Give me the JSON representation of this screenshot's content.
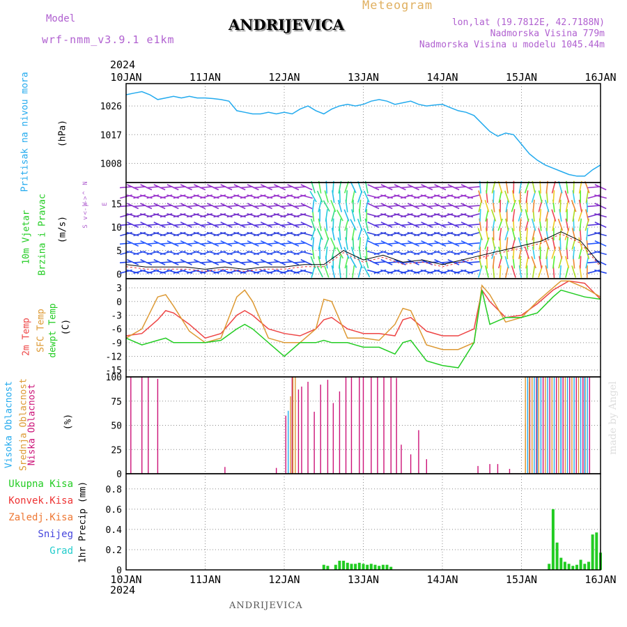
{
  "header": {
    "model_label": "Model",
    "model_name": "wrf-nmm_v3.9.1 e1km",
    "station": "ANDRIJEVICA",
    "meteogram_label": "Meteogram",
    "lonlat": "lon,lat (19.7812E, 42.7188N)",
    "elevation": "Nadmorska Visina 779m",
    "model_elevation": "Nadmorska Visina u modelu 1045.44m",
    "year_top": "2024",
    "year_bottom": "2024",
    "footer_station": "ANDRIJEVICA",
    "signature": "made by Angel"
  },
  "colors": {
    "purple_text": "#b060d0",
    "orange_text": "#e0b060",
    "pressure": "#22aaee",
    "temp2m": "#ee4444",
    "sfc": "#dd9933",
    "dewpt": "#22cc22",
    "high_cloud": "#22aaee",
    "mid_cloud": "#dd9933",
    "low_cloud": "#cc1177",
    "total_precip": "#22cc22",
    "conv_precip": "#ee3333",
    "frz_precip": "#ee7733",
    "snow": "#4444dd",
    "hail": "#22cccc",
    "wind_label": "#22cc22",
    "grid": "#888888"
  },
  "chart_data": [
    {
      "type": "line",
      "name": "pressure",
      "ylabel_main": "Pritisak na nivou mora",
      "ylabel_unit": "(hPa)",
      "x_ticks": [
        "10JAN",
        "11JAN",
        "12JAN",
        "13JAN",
        "14JAN",
        "15JAN",
        "16JAN"
      ],
      "y_ticks": [
        1008,
        1017,
        1026
      ],
      "ylim": [
        1002,
        1033
      ],
      "x_range_days": [
        0,
        6
      ],
      "series": [
        {
          "x": [
            0,
            0.1,
            0.2,
            0.3,
            0.4,
            0.5,
            0.6,
            0.7,
            0.8,
            0.9,
            1.0,
            1.1,
            1.2,
            1.3,
            1.4,
            1.5,
            1.6,
            1.7,
            1.8,
            1.9,
            2.0,
            2.1,
            2.2,
            2.3,
            2.4,
            2.5,
            2.6,
            2.7,
            2.8,
            2.9,
            3.0,
            3.1,
            3.2,
            3.3,
            3.4,
            3.5,
            3.6,
            3.7,
            3.8,
            3.9,
            4.0,
            4.1,
            4.2,
            4.3,
            4.4,
            4.5,
            4.6,
            4.7,
            4.8,
            4.9,
            5.0,
            5.1,
            5.2,
            5.3,
            5.4,
            5.5,
            5.6,
            5.7,
            5.8,
            5.9,
            6.0
          ],
          "values": [
            1029.5,
            1030,
            1030.5,
            1029.5,
            1028,
            1028.5,
            1029,
            1028.5,
            1029,
            1028.5,
            1028.5,
            1028.3,
            1028,
            1027.5,
            1024.5,
            1024,
            1023.5,
            1023.5,
            1024,
            1023.5,
            1024,
            1023.5,
            1025,
            1026,
            1024.5,
            1023.5,
            1025,
            1026,
            1026.5,
            1026,
            1026.5,
            1027.5,
            1028,
            1027.5,
            1026.5,
            1027,
            1027.5,
            1026.5,
            1026,
            1026.3,
            1026.5,
            1025.5,
            1024.5,
            1024,
            1023,
            1020.5,
            1018,
            1016.5,
            1017.5,
            1017,
            1014,
            1011,
            1009,
            1007.5,
            1006.5,
            1005.5,
            1004.5,
            1004,
            1004,
            1006,
            1007.5
          ]
        }
      ]
    },
    {
      "type": "barbs",
      "name": "wind",
      "ylabel_main": "10m Vjetar",
      "ylabel_sub": "Brzina i Pravac",
      "ylabel_unit": "(m/s)",
      "compass": [
        "N",
        "W",
        "E",
        "S"
      ],
      "compass_rows": [
        "^",
        "<-|->",
        "v"
      ],
      "y_ticks": [
        0,
        5,
        10,
        15
      ],
      "ylim": [
        -1,
        19.5
      ],
      "speed_x": [
        0,
        0.25,
        0.5,
        0.75,
        1.0,
        1.25,
        1.5,
        1.75,
        2.0,
        2.25,
        2.5,
        2.75,
        3.0,
        3.25,
        3.5,
        3.75,
        4.0,
        4.25,
        4.5,
        4.75,
        5.0,
        5.25,
        5.5,
        5.75,
        6.0
      ],
      "speed_values": [
        2,
        1.5,
        1.5,
        1.5,
        1,
        1.5,
        1,
        1.5,
        1.5,
        2,
        2,
        5,
        3,
        4,
        2.5,
        3,
        2,
        3,
        4,
        5,
        6,
        7,
        9,
        7,
        2
      ]
    },
    {
      "type": "line",
      "name": "temperature",
      "ylabel_a": "2m Temp",
      "ylabel_b": "SFC Temp",
      "ylabel_c": "dewpt Temp",
      "ylabel_unit": "(C)",
      "y_ticks": [
        -15,
        -12,
        -9,
        -6,
        -3,
        0,
        3
      ],
      "ylim": [
        -16.5,
        5
      ],
      "series": [
        {
          "name": "2m Temp",
          "x": [
            0,
            0.2,
            0.4,
            0.5,
            0.6,
            0.8,
            1.0,
            1.2,
            1.4,
            1.5,
            1.6,
            1.8,
            2.0,
            2.2,
            2.4,
            2.5,
            2.6,
            2.8,
            3.0,
            3.2,
            3.4,
            3.5,
            3.6,
            3.8,
            4.0,
            4.2,
            4.4,
            4.5,
            4.6,
            4.8,
            5.0,
            5.2,
            5.4,
            5.5,
            5.6,
            5.8,
            6.0
          ],
          "values": [
            -7.5,
            -7,
            -4,
            -2,
            -2.5,
            -5,
            -8,
            -7,
            -3,
            -2,
            -3,
            -6,
            -7,
            -7.5,
            -6,
            -4,
            -3.5,
            -6,
            -7,
            -7,
            -7.5,
            -4,
            -3.5,
            -6.5,
            -7.5,
            -7.5,
            -6,
            2.5,
            0,
            -3.5,
            -3,
            -0.5,
            2.5,
            3.5,
            4.5,
            4,
            0.5
          ]
        },
        {
          "name": "SFC Temp",
          "x": [
            0,
            0.2,
            0.4,
            0.5,
            0.6,
            0.8,
            1.0,
            1.2,
            1.4,
            1.5,
            1.6,
            1.8,
            2.0,
            2.2,
            2.4,
            2.5,
            2.6,
            2.8,
            3.0,
            3.2,
            3.4,
            3.5,
            3.6,
            3.8,
            4.0,
            4.2,
            4.4,
            4.5,
            4.6,
            4.8,
            5.0,
            5.2,
            5.4,
            5.5,
            5.6,
            5.8,
            6.0
          ],
          "values": [
            -8,
            -6,
            1,
            1.5,
            -1,
            -6.5,
            -9,
            -8,
            1,
            2.5,
            0,
            -8,
            -9,
            -9,
            -6,
            0.5,
            0,
            -8,
            -8,
            -8.5,
            -5,
            -1.5,
            -2,
            -9.5,
            -10.5,
            -10.5,
            -9,
            3.5,
            1.5,
            -4.5,
            -3.5,
            0,
            3,
            4.5,
            4.5,
            3,
            1
          ]
        },
        {
          "name": "dewpt Temp",
          "x": [
            0,
            0.2,
            0.4,
            0.5,
            0.6,
            0.8,
            1.0,
            1.2,
            1.4,
            1.5,
            1.6,
            1.8,
            2.0,
            2.2,
            2.4,
            2.5,
            2.6,
            2.8,
            3.0,
            3.2,
            3.4,
            3.5,
            3.6,
            3.8,
            4.0,
            4.2,
            4.4,
            4.5,
            4.6,
            4.8,
            5.0,
            5.2,
            5.4,
            5.5,
            5.6,
            5.8,
            6.0
          ],
          "values": [
            -8,
            -9.5,
            -8.5,
            -8,
            -9,
            -9,
            -9,
            -8.5,
            -6,
            -5,
            -6,
            -9,
            -12,
            -9,
            -9,
            -8.5,
            -9,
            -9,
            -10,
            -10,
            -11.5,
            -9,
            -8.5,
            -13,
            -14,
            -14.5,
            -9,
            2.5,
            -5,
            -3.5,
            -3.5,
            -2.5,
            1,
            2.5,
            2,
            1,
            0.5
          ]
        }
      ]
    },
    {
      "type": "bar",
      "name": "clouds",
      "ylabel_a": "Visoka Oblacnost",
      "ylabel_b": "Srednja Oblacnost",
      "ylabel_c": "Niska Oblacnost",
      "ylabel_unit": "(%)",
      "y_ticks": [
        0,
        25,
        50,
        75,
        100
      ],
      "ylim": [
        0,
        100
      ],
      "series": [
        {
          "name": "Niska Oblacnost",
          "x": [
            0.06,
            0.2,
            0.28,
            0.4,
            1.25,
            1.9,
            2.02,
            2.1,
            2.18,
            2.22,
            2.3,
            2.38,
            2.46,
            2.55,
            2.62,
            2.7,
            2.78,
            2.85,
            2.95,
            3.0,
            3.1,
            3.18,
            3.26,
            3.35,
            3.42,
            3.48,
            3.6,
            3.7,
            3.8,
            4.45,
            4.6,
            4.7,
            4.85,
            5.1
          ],
          "values": [
            100,
            100,
            100,
            98,
            7,
            6,
            60,
            100,
            87,
            90,
            95,
            64,
            92,
            97,
            73,
            85,
            100,
            100,
            100,
            100,
            100,
            100,
            100,
            100,
            99,
            30,
            20,
            45,
            15,
            8,
            10,
            10,
            5,
            95
          ]
        },
        {
          "name": "Srednja Oblacnost",
          "x": [
            2.08,
            2.11,
            2.14,
            5.05,
            5.1
          ],
          "values": [
            80,
            100,
            100,
            52,
            100
          ]
        },
        {
          "name": "Visoka Oblacnost",
          "x": [
            2.05,
            5.2,
            5.5,
            5.8
          ],
          "values": [
            65,
            100,
            100,
            100
          ]
        }
      ],
      "dense_band": {
        "x_from": 5.05,
        "x_to": 5.88,
        "value": 100
      }
    },
    {
      "type": "bar",
      "name": "precip",
      "ylabel_unit": "1hr Precip (mm)",
      "legend": [
        "Ukupna Kisa",
        "Konvek.Kisa",
        "Zaledj.Kisa",
        "Snijeg",
        "Grad"
      ],
      "y_ticks": [
        0,
        0.2,
        0.4,
        0.6,
        0.8
      ],
      "ylim": [
        0,
        0.95
      ],
      "series": [
        {
          "name": "Ukupna Kisa",
          "x": [
            2.5,
            2.55,
            2.65,
            2.7,
            2.75,
            2.8,
            2.85,
            2.9,
            2.95,
            3.0,
            3.05,
            3.1,
            3.15,
            3.2,
            3.25,
            3.3,
            3.35,
            5.35,
            5.4,
            5.45,
            5.5,
            5.55,
            5.6,
            5.65,
            5.7,
            5.75,
            5.8,
            5.85,
            5.9,
            5.95,
            6.0
          ],
          "values": [
            0.05,
            0.04,
            0.05,
            0.09,
            0.09,
            0.07,
            0.06,
            0.06,
            0.07,
            0.06,
            0.05,
            0.06,
            0.05,
            0.04,
            0.05,
            0.05,
            0.03,
            0.06,
            0.6,
            0.27,
            0.12,
            0.08,
            0.06,
            0.04,
            0.05,
            0.1,
            0.06,
            0.08,
            0.35,
            0.37,
            0.17
          ]
        }
      ]
    }
  ]
}
